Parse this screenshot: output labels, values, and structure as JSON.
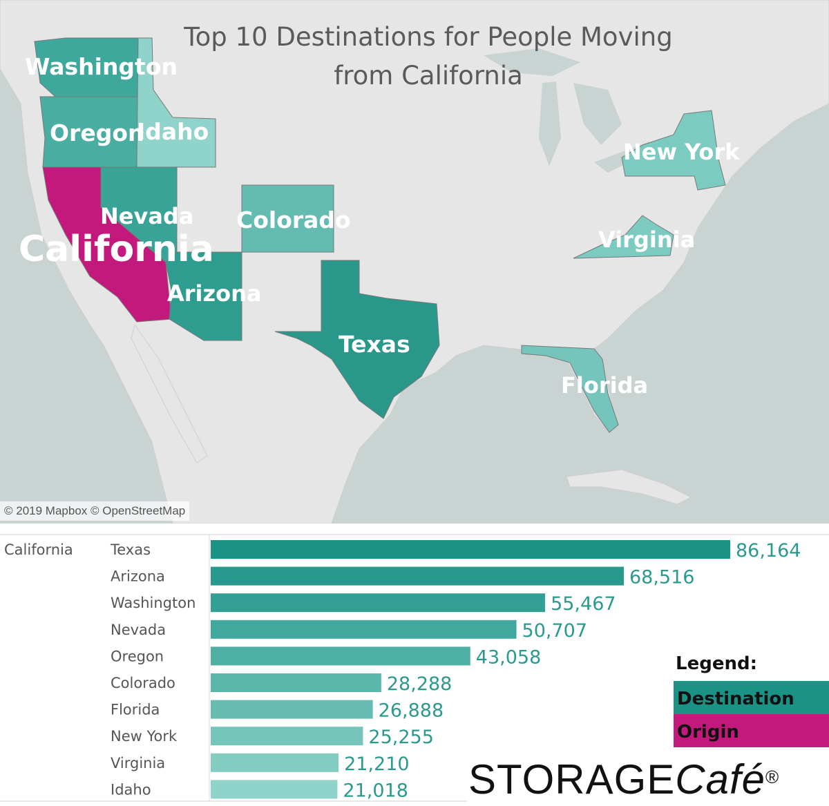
{
  "map": {
    "title_line1": "Top 10 Destinations for People Moving",
    "title_line2": "from California",
    "attribution": "© 2019 Mapbox © OpenStreetMap",
    "origin_state": "California",
    "state_labels": [
      "Washington",
      "Oregon",
      "Idaho",
      "Nevada",
      "California",
      "Arizona",
      "Colorado",
      "Texas",
      "New York",
      "Virginia",
      "Florida"
    ]
  },
  "chart_data": {
    "type": "bar",
    "orientation": "horizontal",
    "origin": "California",
    "categories": [
      "Texas",
      "Arizona",
      "Washington",
      "Nevada",
      "Oregon",
      "Colorado",
      "Florida",
      "New York",
      "Virginia",
      "Idaho"
    ],
    "values": [
      86164,
      68516,
      55467,
      50707,
      43058,
      28288,
      26888,
      25255,
      21210,
      21018
    ],
    "value_labels": [
      "86,164",
      "68,516",
      "55,467",
      "50,707",
      "43,058",
      "28,288",
      "26,888",
      "25,255",
      "21,210",
      "21,018"
    ],
    "xlim": [
      0,
      86164
    ],
    "legend_position": "bottom-right"
  },
  "legend": {
    "title": "Legend:",
    "items": [
      {
        "label": "Destination",
        "color": "#1a9286"
      },
      {
        "label": "Origin",
        "color": "#c4197c"
      }
    ]
  },
  "colors": {
    "destination_dark": "#1a9286",
    "destination_light": "#8fd3ca",
    "origin": "#c4197c",
    "value_text": "#2a9a8e"
  },
  "logo": {
    "main": "STORAGE",
    "cafe": "Café",
    "mark": "®"
  }
}
